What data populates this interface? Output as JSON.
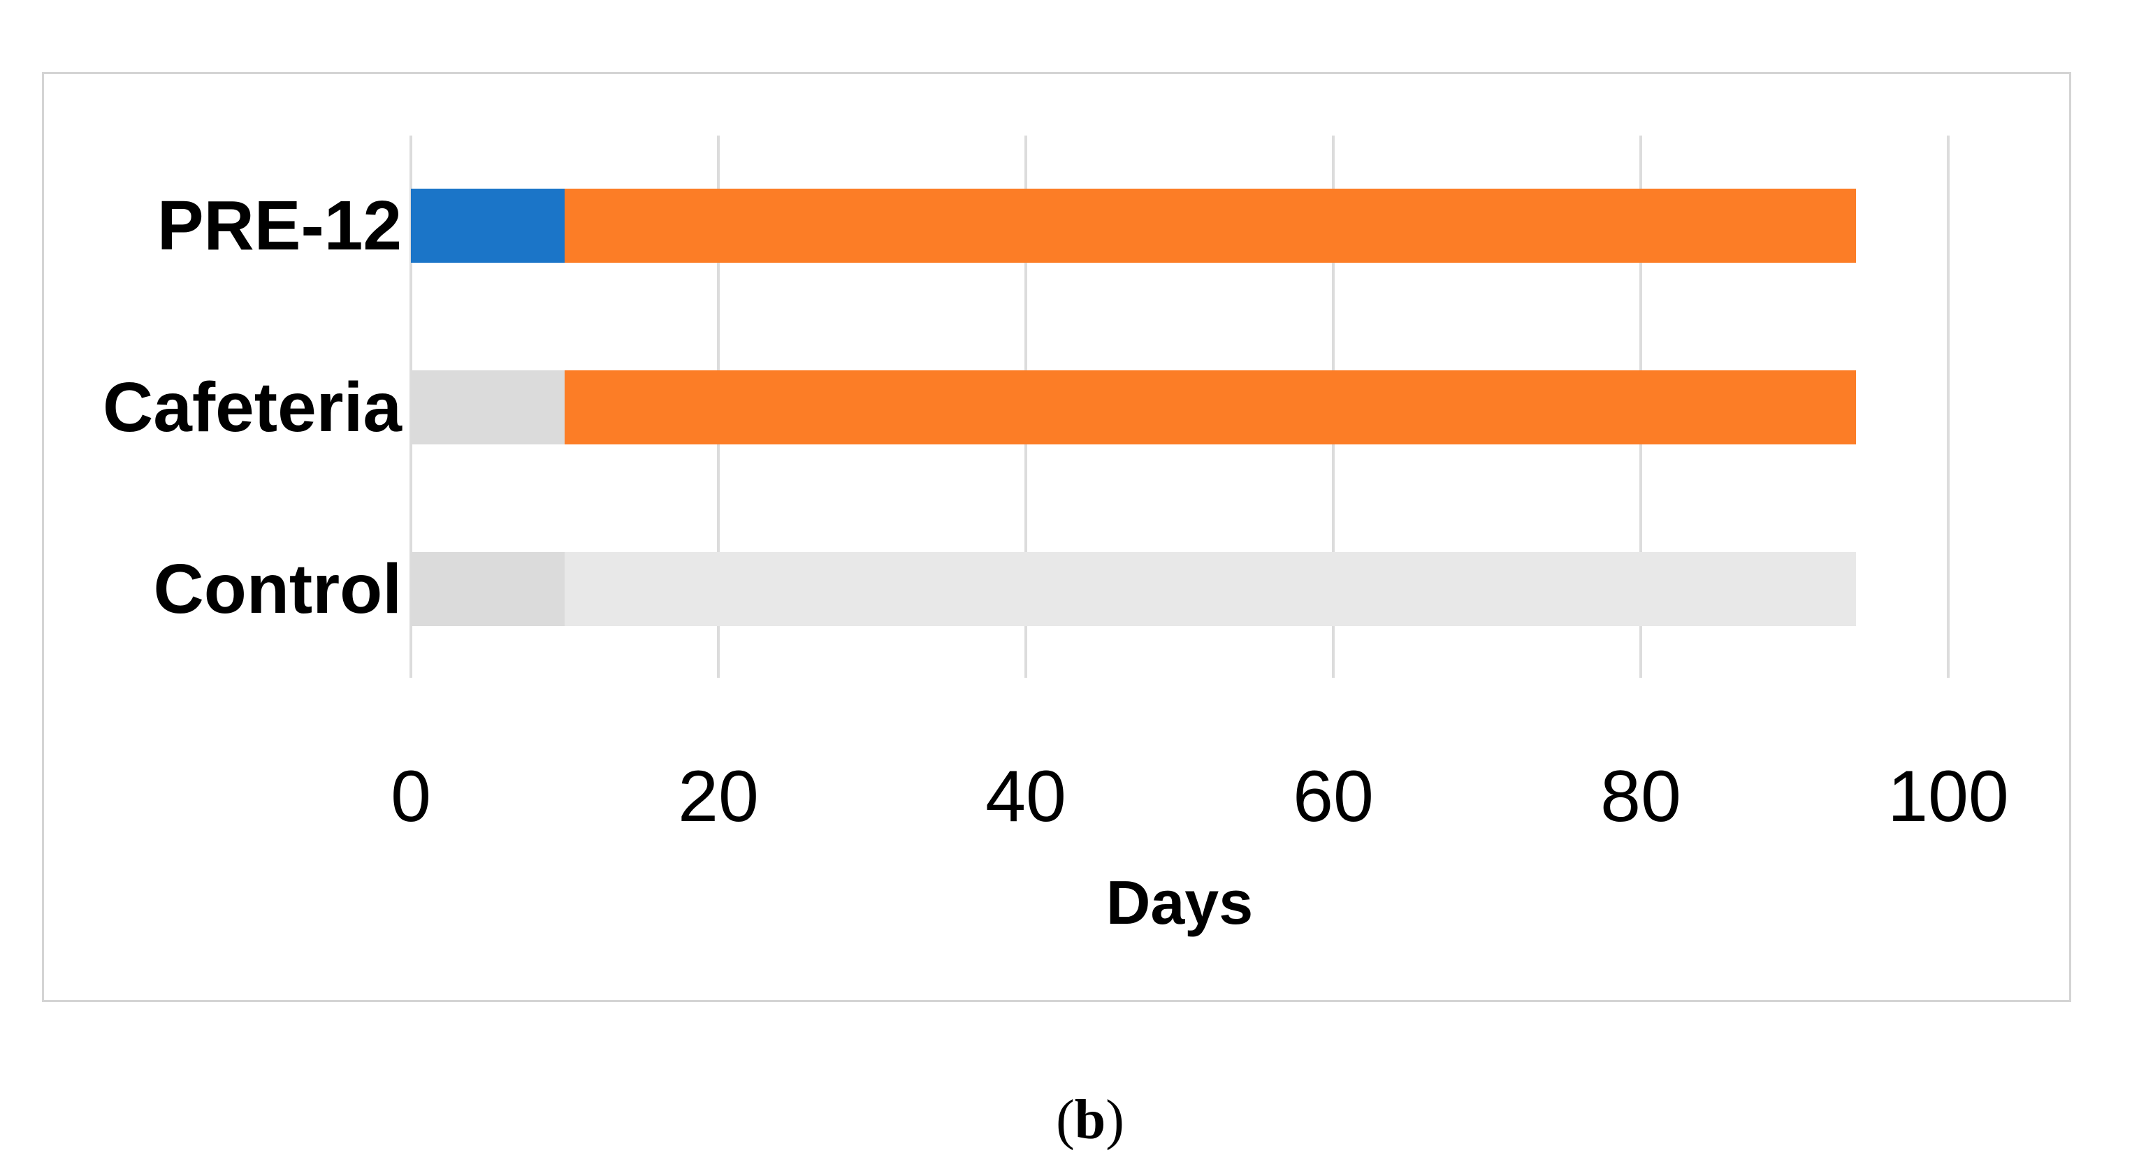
{
  "card": {
    "background": "#ffffff",
    "border_color": "#d4d4d4"
  },
  "caption": {
    "open_paren": "(",
    "letter": "b",
    "close_paren": ")"
  },
  "chart_data": {
    "type": "bar",
    "orientation": "horizontal",
    "stacked": true,
    "title": "",
    "xlabel": "Days",
    "categories": [
      "PRE-12",
      "Cafeteria",
      "Control"
    ],
    "series": [
      {
        "name": "segment-1",
        "values": [
          10,
          10,
          10
        ],
        "colors": [
          "#1b75c8",
          "#dbdbdb",
          "#dbdbdb"
        ]
      },
      {
        "name": "segment-2",
        "values": [
          84,
          84,
          84
        ],
        "colors": [
          "#fc7d26",
          "#fc7d26",
          "#e8e8e8"
        ]
      }
    ],
    "bar_totals": [
      94,
      94,
      94
    ],
    "x_ticks": [
      0,
      20,
      40,
      60,
      80,
      100
    ],
    "xlim": [
      0,
      105.3
    ],
    "grid": {
      "show": true,
      "axis": "x",
      "color": "#dcdcdc"
    },
    "legend": {
      "show": false
    }
  }
}
